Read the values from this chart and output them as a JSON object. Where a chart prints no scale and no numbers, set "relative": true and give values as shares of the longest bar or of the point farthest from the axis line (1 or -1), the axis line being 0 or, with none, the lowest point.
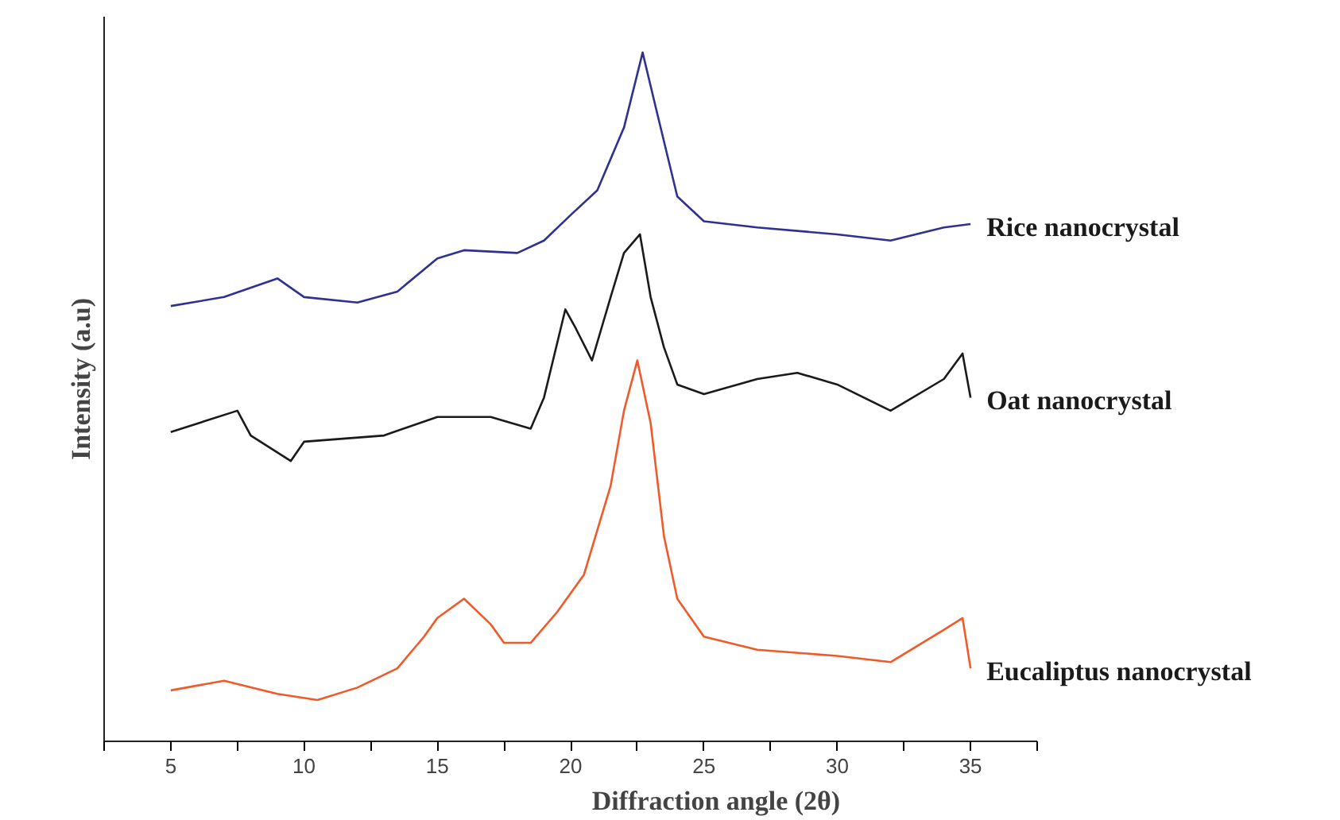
{
  "chart_data": {
    "type": "line",
    "relative": true,
    "xlabel": "Diffraction angle (2θ)",
    "ylabel": "Intensity (a.u)",
    "xlim": [
      2.5,
      37.5
    ],
    "xticks": [
      {
        "value": 2.5,
        "label": null
      },
      5,
      {
        "value": 7.5,
        "label": null
      },
      10,
      {
        "value": 12.5,
        "label": null
      },
      15,
      {
        "value": 17.5,
        "label": null
      },
      20,
      {
        "value": 22.5,
        "label": null
      },
      25,
      {
        "value": 27.5,
        "label": null
      },
      30,
      {
        "value": 32.5,
        "label": null
      },
      35,
      {
        "value": 37.5,
        "label": null
      }
    ],
    "grid": false,
    "marker": "none",
    "line_style": "solid",
    "series": [
      {
        "name": "Rice nanocrystal",
        "color": "#2e3192",
        "x": [
          5,
          7,
          9,
          10,
          12,
          13.5,
          15,
          16,
          18,
          19,
          20,
          21,
          22,
          22.7,
          23.2,
          24,
          25,
          27,
          30,
          32,
          34,
          35
        ],
        "values": [
          0.632,
          0.645,
          0.672,
          0.645,
          0.637,
          0.653,
          0.701,
          0.713,
          0.709,
          0.727,
          0.764,
          0.8,
          0.891,
          1.0,
          0.919,
          0.791,
          0.755,
          0.746,
          0.736,
          0.727,
          0.746,
          0.751
        ]
      },
      {
        "name": "Oat nanocrystal",
        "color": "#1a1a1a",
        "x": [
          5,
          7.5,
          8,
          9.5,
          10,
          13,
          15,
          17,
          18.5,
          19,
          19.8,
          20.2,
          20.8,
          21.5,
          22,
          22.6,
          23,
          23.5,
          24,
          25,
          27,
          28.5,
          30,
          32,
          34,
          34.7,
          35
        ],
        "values": [
          0.449,
          0.48,
          0.444,
          0.407,
          0.435,
          0.444,
          0.471,
          0.471,
          0.454,
          0.499,
          0.627,
          0.599,
          0.553,
          0.645,
          0.709,
          0.736,
          0.645,
          0.572,
          0.518,
          0.504,
          0.526,
          0.535,
          0.518,
          0.48,
          0.526,
          0.563,
          0.499
        ]
      },
      {
        "name": "Eucaliptus nanocrystal",
        "color": "#f05a28",
        "x": [
          5,
          7,
          9,
          10.5,
          12,
          13.5,
          14.5,
          15,
          16,
          17,
          17.5,
          18.5,
          19.5,
          20.5,
          21.5,
          22,
          22.5,
          23,
          23.5,
          24,
          25,
          27,
          30,
          32,
          34,
          34.7,
          35
        ],
        "values": [
          0.074,
          0.088,
          0.069,
          0.06,
          0.078,
          0.106,
          0.152,
          0.179,
          0.207,
          0.17,
          0.143,
          0.143,
          0.188,
          0.242,
          0.371,
          0.48,
          0.553,
          0.462,
          0.298,
          0.207,
          0.152,
          0.133,
          0.124,
          0.115,
          0.162,
          0.179,
          0.106
        ]
      }
    ]
  }
}
